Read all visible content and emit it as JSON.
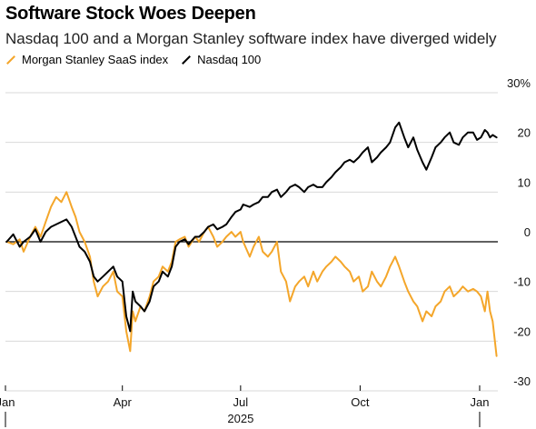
{
  "title": "Software Stock Woes Deepen",
  "subtitle": "Nasdaq 100 and a Morgan Stanley software index have diverged widely",
  "colors": {
    "saas": "#f4a62a",
    "nasdaq": "#000000",
    "grid": "#d9d9d9",
    "zero": "#000000"
  },
  "chart_data": {
    "type": "line",
    "title": "Software Stock Woes Deepen",
    "subtitle": "Nasdaq 100 and a Morgan Stanley software index have diverged widely",
    "xlabel": "",
    "ylabel": "",
    "x_range": [
      "2025-01-01",
      "2026-01-15"
    ],
    "ylim": [
      -30,
      30
    ],
    "y_ticks": [
      30,
      20,
      10,
      0,
      -10,
      -20,
      -30
    ],
    "y_tick_labels": [
      "30%",
      "20",
      "10",
      "0",
      "-10",
      "-20",
      "-30"
    ],
    "x_ticks": [
      {
        "date": "2025-01-01",
        "label": "Jan"
      },
      {
        "date": "2025-04-01",
        "label": "Apr"
      },
      {
        "date": "2025-07-01",
        "label": "Jul"
      },
      {
        "date": "2025-10-01",
        "label": "Oct"
      },
      {
        "date": "2026-01-01",
        "label": "Jan"
      }
    ],
    "x_year_label": "2025",
    "grid": true,
    "legend_position": "top-left",
    "series": [
      {
        "name": "Morgan Stanley SaaS index",
        "color": "#f4a62a",
        "points": [
          [
            "2025-01-02",
            0
          ],
          [
            "2025-01-07",
            -0.5
          ],
          [
            "2025-01-12",
            0.5
          ],
          [
            "2025-01-15",
            -2
          ],
          [
            "2025-01-20",
            1
          ],
          [
            "2025-01-24",
            3
          ],
          [
            "2025-01-28",
            1
          ],
          [
            "2025-02-01",
            4
          ],
          [
            "2025-02-05",
            7
          ],
          [
            "2025-02-09",
            9
          ],
          [
            "2025-02-13",
            8
          ],
          [
            "2025-02-17",
            10
          ],
          [
            "2025-02-21",
            7
          ],
          [
            "2025-02-24",
            5
          ],
          [
            "2025-02-27",
            2
          ],
          [
            "2025-03-03",
            0
          ],
          [
            "2025-03-07",
            -3
          ],
          [
            "2025-03-10",
            -8
          ],
          [
            "2025-03-13",
            -11
          ],
          [
            "2025-03-17",
            -9
          ],
          [
            "2025-03-21",
            -8
          ],
          [
            "2025-03-25",
            -6
          ],
          [
            "2025-03-28",
            -10
          ],
          [
            "2025-04-01",
            -11
          ],
          [
            "2025-04-04",
            -18
          ],
          [
            "2025-04-07",
            -22
          ],
          [
            "2025-04-09",
            -14
          ],
          [
            "2025-04-11",
            -16
          ],
          [
            "2025-04-15",
            -13
          ],
          [
            "2025-04-18",
            -14
          ],
          [
            "2025-04-22",
            -11
          ],
          [
            "2025-04-25",
            -8
          ],
          [
            "2025-04-29",
            -7
          ],
          [
            "2025-05-02",
            -5
          ],
          [
            "2025-05-06",
            -6
          ],
          [
            "2025-05-09",
            -4
          ],
          [
            "2025-05-12",
            0
          ],
          [
            "2025-05-15",
            0.5
          ],
          [
            "2025-05-19",
            1
          ],
          [
            "2025-05-22",
            -1
          ],
          [
            "2025-05-27",
            1
          ],
          [
            "2025-05-30",
            0
          ],
          [
            "2025-06-03",
            2
          ],
          [
            "2025-06-06",
            3
          ],
          [
            "2025-06-10",
            1
          ],
          [
            "2025-06-13",
            -1
          ],
          [
            "2025-06-17",
            0
          ],
          [
            "2025-06-20",
            1
          ],
          [
            "2025-06-24",
            2
          ],
          [
            "2025-06-27",
            1
          ],
          [
            "2025-07-01",
            2
          ],
          [
            "2025-07-03",
            0
          ],
          [
            "2025-07-08",
            -3
          ],
          [
            "2025-07-11",
            -1
          ],
          [
            "2025-07-15",
            1
          ],
          [
            "2025-07-18",
            -2
          ],
          [
            "2025-07-22",
            -3
          ],
          [
            "2025-07-25",
            -2
          ],
          [
            "2025-07-29",
            0
          ],
          [
            "2025-08-01",
            -6
          ],
          [
            "2025-08-05",
            -8
          ],
          [
            "2025-08-08",
            -12
          ],
          [
            "2025-08-12",
            -9
          ],
          [
            "2025-08-15",
            -8
          ],
          [
            "2025-08-19",
            -7
          ],
          [
            "2025-08-22",
            -9
          ],
          [
            "2025-08-26",
            -6
          ],
          [
            "2025-08-29",
            -8
          ],
          [
            "2025-09-02",
            -6
          ],
          [
            "2025-09-05",
            -5
          ],
          [
            "2025-09-09",
            -4
          ],
          [
            "2025-09-12",
            -3
          ],
          [
            "2025-09-16",
            -4
          ],
          [
            "2025-09-19",
            -5
          ],
          [
            "2025-09-23",
            -6
          ],
          [
            "2025-09-26",
            -8
          ],
          [
            "2025-09-30",
            -7
          ],
          [
            "2025-10-03",
            -10
          ],
          [
            "2025-10-07",
            -9
          ],
          [
            "2025-10-10",
            -6
          ],
          [
            "2025-10-14",
            -8
          ],
          [
            "2025-10-17",
            -9
          ],
          [
            "2025-10-21",
            -7
          ],
          [
            "2025-10-24",
            -5
          ],
          [
            "2025-10-28",
            -3
          ],
          [
            "2025-10-31",
            -5
          ],
          [
            "2025-11-04",
            -8
          ],
          [
            "2025-11-07",
            -10
          ],
          [
            "2025-11-11",
            -12
          ],
          [
            "2025-11-14",
            -13
          ],
          [
            "2025-11-18",
            -16
          ],
          [
            "2025-11-21",
            -14
          ],
          [
            "2025-11-25",
            -15
          ],
          [
            "2025-11-28",
            -13
          ],
          [
            "2025-12-02",
            -12
          ],
          [
            "2025-12-05",
            -10
          ],
          [
            "2025-12-09",
            -9
          ],
          [
            "2025-12-12",
            -11
          ],
          [
            "2025-12-16",
            -10
          ],
          [
            "2025-12-19",
            -9
          ],
          [
            "2025-12-23",
            -10
          ],
          [
            "2025-12-27",
            -9.5
          ],
          [
            "2025-12-30",
            -10
          ],
          [
            "2026-01-02",
            -11
          ],
          [
            "2026-01-05",
            -14
          ],
          [
            "2026-01-07",
            -10
          ],
          [
            "2026-01-09",
            -14
          ],
          [
            "2026-01-11",
            -16
          ],
          [
            "2026-01-14",
            -23
          ]
        ]
      },
      {
        "name": "Nasdaq 100",
        "color": "#000000",
        "points": [
          [
            "2025-01-02",
            0
          ],
          [
            "2025-01-07",
            1.5
          ],
          [
            "2025-01-12",
            -1
          ],
          [
            "2025-01-15",
            0
          ],
          [
            "2025-01-20",
            1
          ],
          [
            "2025-01-24",
            2.5
          ],
          [
            "2025-01-28",
            0
          ],
          [
            "2025-02-01",
            2
          ],
          [
            "2025-02-05",
            3
          ],
          [
            "2025-02-09",
            3.5
          ],
          [
            "2025-02-13",
            4
          ],
          [
            "2025-02-17",
            4.5
          ],
          [
            "2025-02-21",
            3
          ],
          [
            "2025-02-24",
            1
          ],
          [
            "2025-02-27",
            -1
          ],
          [
            "2025-03-03",
            -2
          ],
          [
            "2025-03-07",
            -4
          ],
          [
            "2025-03-10",
            -7
          ],
          [
            "2025-03-13",
            -8
          ],
          [
            "2025-03-17",
            -7
          ],
          [
            "2025-03-21",
            -6
          ],
          [
            "2025-03-25",
            -5
          ],
          [
            "2025-03-28",
            -7
          ],
          [
            "2025-04-01",
            -8
          ],
          [
            "2025-04-04",
            -15
          ],
          [
            "2025-04-07",
            -18
          ],
          [
            "2025-04-09",
            -10
          ],
          [
            "2025-04-11",
            -12
          ],
          [
            "2025-04-15",
            -13
          ],
          [
            "2025-04-18",
            -14
          ],
          [
            "2025-04-22",
            -12
          ],
          [
            "2025-04-25",
            -9
          ],
          [
            "2025-04-29",
            -8
          ],
          [
            "2025-05-02",
            -6
          ],
          [
            "2025-05-06",
            -7
          ],
          [
            "2025-05-09",
            -5
          ],
          [
            "2025-05-12",
            -1
          ],
          [
            "2025-05-15",
            0
          ],
          [
            "2025-05-19",
            0.5
          ],
          [
            "2025-05-22",
            -0.5
          ],
          [
            "2025-05-27",
            1
          ],
          [
            "2025-05-30",
            1
          ],
          [
            "2025-06-03",
            2
          ],
          [
            "2025-06-06",
            3
          ],
          [
            "2025-06-10",
            3.5
          ],
          [
            "2025-06-13",
            2.5
          ],
          [
            "2025-06-17",
            3
          ],
          [
            "2025-06-20",
            3.5
          ],
          [
            "2025-06-24",
            5
          ],
          [
            "2025-06-27",
            6
          ],
          [
            "2025-07-01",
            6.5
          ],
          [
            "2025-07-03",
            7.5
          ],
          [
            "2025-07-08",
            7
          ],
          [
            "2025-07-11",
            7.5
          ],
          [
            "2025-07-15",
            8
          ],
          [
            "2025-07-18",
            9
          ],
          [
            "2025-07-22",
            9
          ],
          [
            "2025-07-25",
            10
          ],
          [
            "2025-07-29",
            10.5
          ],
          [
            "2025-08-01",
            9
          ],
          [
            "2025-08-05",
            10
          ],
          [
            "2025-08-08",
            11
          ],
          [
            "2025-08-12",
            11.5
          ],
          [
            "2025-08-15",
            11
          ],
          [
            "2025-08-19",
            10
          ],
          [
            "2025-08-22",
            11
          ],
          [
            "2025-08-26",
            11.5
          ],
          [
            "2025-08-29",
            11
          ],
          [
            "2025-09-02",
            11
          ],
          [
            "2025-09-05",
            12
          ],
          [
            "2025-09-09",
            13
          ],
          [
            "2025-09-12",
            14
          ],
          [
            "2025-09-16",
            15
          ],
          [
            "2025-09-19",
            16
          ],
          [
            "2025-09-23",
            16.5
          ],
          [
            "2025-09-26",
            16
          ],
          [
            "2025-09-30",
            17
          ],
          [
            "2025-10-03",
            18
          ],
          [
            "2025-10-07",
            19
          ],
          [
            "2025-10-10",
            16
          ],
          [
            "2025-10-14",
            17
          ],
          [
            "2025-10-17",
            18
          ],
          [
            "2025-10-21",
            19
          ],
          [
            "2025-10-24",
            20
          ],
          [
            "2025-10-28",
            23
          ],
          [
            "2025-10-31",
            24
          ],
          [
            "2025-11-04",
            21
          ],
          [
            "2025-11-07",
            19
          ],
          [
            "2025-11-11",
            21
          ],
          [
            "2025-11-14",
            18.5
          ],
          [
            "2025-11-18",
            16
          ],
          [
            "2025-11-21",
            14.5
          ],
          [
            "2025-11-25",
            17
          ],
          [
            "2025-11-28",
            19
          ],
          [
            "2025-12-02",
            20
          ],
          [
            "2025-12-05",
            21
          ],
          [
            "2025-12-09",
            22
          ],
          [
            "2025-12-12",
            20
          ],
          [
            "2025-12-16",
            19.5
          ],
          [
            "2025-12-19",
            21
          ],
          [
            "2025-12-23",
            22
          ],
          [
            "2025-12-27",
            22
          ],
          [
            "2025-12-30",
            20.5
          ],
          [
            "2026-01-02",
            21
          ],
          [
            "2026-01-05",
            22.5
          ],
          [
            "2026-01-07",
            22
          ],
          [
            "2026-01-09",
            21
          ],
          [
            "2026-01-11",
            21.5
          ],
          [
            "2026-01-14",
            21
          ]
        ]
      }
    ]
  }
}
